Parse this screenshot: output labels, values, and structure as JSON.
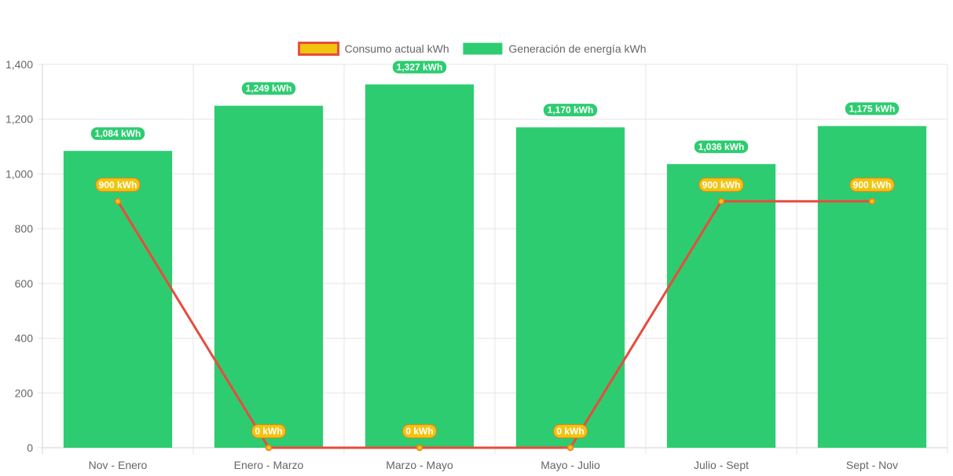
{
  "chart_data": {
    "type": "bar",
    "categories": [
      "Nov - Enero",
      "Enero - Marzo",
      "Marzo - Mayo",
      "Mayo - Julio",
      "Julio - Sept",
      "Sept - Nov"
    ],
    "series": [
      {
        "name": "Consumo actual kWh",
        "type": "line",
        "values": [
          900,
          0,
          0,
          0,
          900,
          900
        ],
        "labels": [
          "900 kWh",
          "0 kWh",
          "0 kWh",
          "0 kWh",
          "900 kWh",
          "900 kWh"
        ],
        "color": "#e74c3c",
        "fill": "#f1c40f"
      },
      {
        "name": "Generación de energía kWh",
        "type": "bar",
        "values": [
          1084,
          1249,
          1327,
          1170,
          1036,
          1175
        ],
        "labels": [
          "1,084 kWh",
          "1,249 kWh",
          "1,327 kWh",
          "1,170 kWh",
          "1,036 kWh",
          "1,175 kWh"
        ],
        "color": "#2ecc71"
      }
    ],
    "ylim": [
      0,
      1400
    ],
    "yticks": [
      0,
      200,
      400,
      600,
      800,
      1000,
      1200,
      1400
    ],
    "ytick_labels": [
      "0",
      "200",
      "400",
      "600",
      "800",
      "1,000",
      "1,200",
      "1,400"
    ],
    "grid": true,
    "legend": "top-center",
    "title": "",
    "xlabel": "",
    "ylabel": ""
  }
}
